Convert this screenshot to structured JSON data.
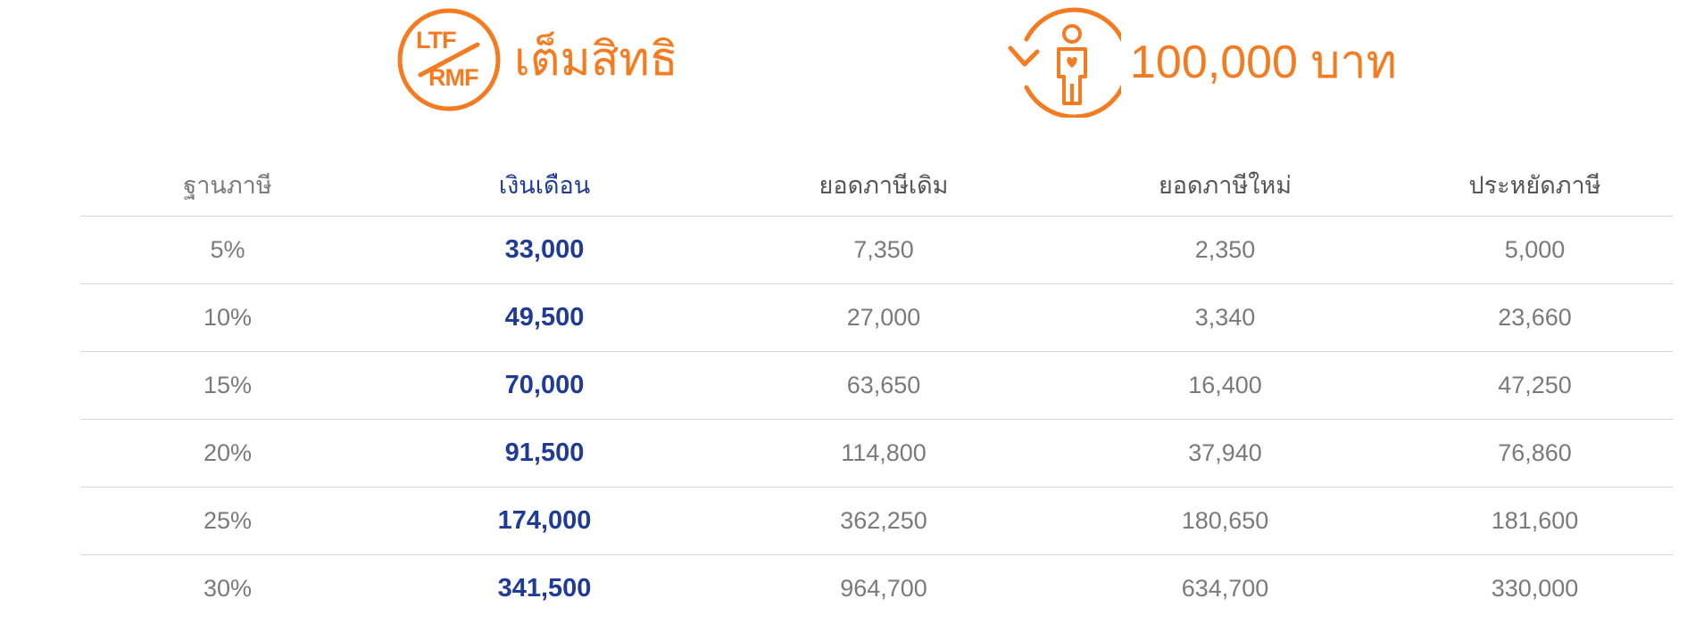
{
  "header": {
    "ltf_badge": {
      "top_text": "LTF",
      "bottom_text": "RMF",
      "icon": "ltf-rmf-badge-icon"
    },
    "ltf_label": "เต็มสิทธิ",
    "deduction_icon": "person-heart-icon",
    "deduction_label": "100,000 บาท",
    "accent_color": "#f47b20"
  },
  "table": {
    "columns": [
      "ฐานภาษี",
      "เงินเดือน",
      "ยอดภาษีเดิม",
      "ยอดภาษีใหม่",
      "ประหยัดภาษี"
    ],
    "rows": [
      [
        "5%",
        "33,000",
        "7,350",
        "2,350",
        "5,000"
      ],
      [
        "10%",
        "49,500",
        "27,000",
        "3,340",
        "23,660"
      ],
      [
        "15%",
        "70,000",
        "63,650",
        "16,400",
        "47,250"
      ],
      [
        "20%",
        "91,500",
        "114,800",
        "37,940",
        "76,860"
      ],
      [
        "25%",
        "174,000",
        "362,250",
        "180,650",
        "181,600"
      ],
      [
        "30%",
        "341,500",
        "964,700",
        "634,700",
        "330,000"
      ]
    ],
    "salary_color": "#1f3b97",
    "text_color": "#7a7a7a"
  }
}
